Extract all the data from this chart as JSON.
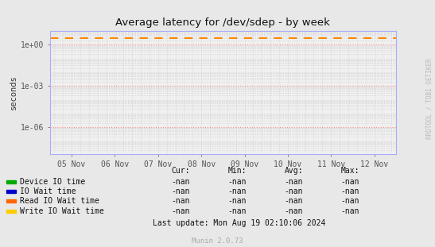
{
  "title": "Average latency for /dev/sdep - by week",
  "ylabel": "seconds",
  "background_color": "#e8e8e8",
  "plot_bg_color": "#f0f0f0",
  "grid_color_major": "#ff8888",
  "grid_color_minor": "#cccccc",
  "x_tick_labels": [
    "05 Nov",
    "06 Nov",
    "07 Nov",
    "08 Nov",
    "09 Nov",
    "10 Nov",
    "11 Nov",
    "12 Nov"
  ],
  "x_tick_positions": [
    0,
    1,
    2,
    3,
    4,
    5,
    6,
    7
  ],
  "ylim": [
    1e-08,
    10.0
  ],
  "yticks": [
    1e-06,
    0.001,
    1.0
  ],
  "ytick_labels": [
    "1e-06",
    "1e-03",
    "1e+00"
  ],
  "dashed_line_y": 3.0,
  "dashed_line_color": "#ff8800",
  "legend_entries": [
    {
      "label": "Device IO time",
      "color": "#00aa00"
    },
    {
      "label": "IO Wait time",
      "color": "#0000cc"
    },
    {
      "label": "Read IO Wait time",
      "color": "#ff6600"
    },
    {
      "label": "Write IO Wait time",
      "color": "#ffcc00"
    }
  ],
  "stats_headers": [
    "Cur:",
    "Min:",
    "Avg:",
    "Max:"
  ],
  "stats_values": [
    "-nan",
    "-nan",
    "-nan",
    "-nan"
  ],
  "watermark": "RRDTOOL / TOBI OETIKER",
  "footer": "Munin 2.0.73",
  "last_update": "Last update: Mon Aug 19 02:10:06 2024"
}
